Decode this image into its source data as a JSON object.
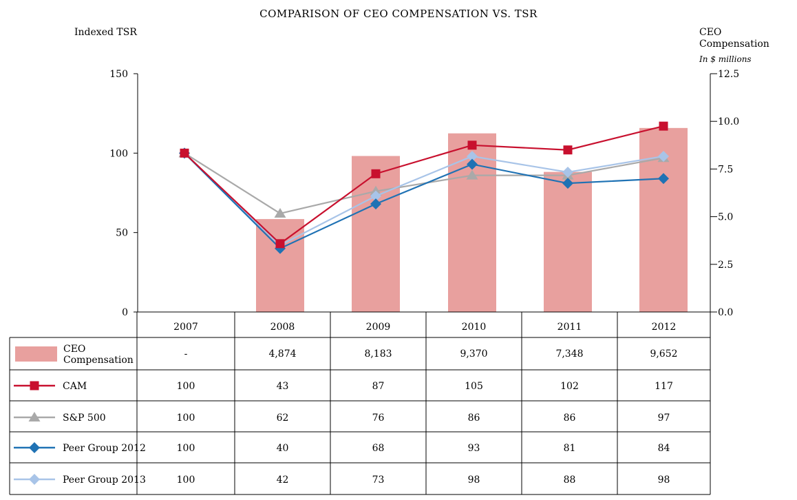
{
  "chart_data": {
    "type": "bar+line",
    "title": "COMPARISON OF CEO COMPENSATION VS. TSR",
    "left_axis": {
      "label": "Indexed TSR",
      "ylim": [
        0,
        150
      ],
      "ticks": [
        "0",
        "50",
        "100",
        "150"
      ]
    },
    "right_axis": {
      "label_line1": "CEO",
      "label_line2": "Compensation",
      "units": "In $ millions",
      "ylim": [
        0,
        12.5
      ],
      "ticks": [
        "0.0",
        "2.5",
        "5.0",
        "7.5",
        "10.0",
        "12.5"
      ]
    },
    "categories": [
      "2007",
      "2008",
      "2009",
      "2010",
      "2011",
      "2012"
    ],
    "bars": {
      "name_line1": "CEO",
      "name_line2": "Compensation",
      "color": "#e8a09e",
      "values": [
        null,
        4.874,
        8.183,
        9.37,
        7.348,
        9.652
      ],
      "display": [
        "-",
        "4,874",
        "8,183",
        "9,370",
        "7,348",
        "9,652"
      ]
    },
    "series": [
      {
        "name": "S&P 500",
        "color": "#a9a9a9",
        "marker": "triangle",
        "values": [
          100,
          62,
          76,
          86,
          86,
          97
        ]
      },
      {
        "name": "Peer Group 2013",
        "color": "#a8c4e8",
        "marker": "diamond",
        "values": [
          100,
          42,
          73,
          98,
          88,
          98
        ]
      },
      {
        "name": "Peer Group 2012",
        "color": "#1f72b4",
        "marker": "diamond",
        "values": [
          100,
          40,
          68,
          93,
          81,
          84
        ]
      },
      {
        "name": "CAM",
        "color": "#c8102e",
        "marker": "square",
        "values": [
          100,
          43,
          87,
          105,
          102,
          117
        ]
      }
    ],
    "table_rows": [
      {
        "label": "CAM",
        "values": [
          "100",
          "43",
          "87",
          "105",
          "102",
          "117"
        ]
      },
      {
        "label": "S&P 500",
        "values": [
          "100",
          "62",
          "76",
          "86",
          "86",
          "97"
        ]
      },
      {
        "label": "Peer Group 2012",
        "values": [
          "100",
          "40",
          "68",
          "93",
          "81",
          "84"
        ]
      },
      {
        "label": "Peer Group 2013",
        "values": [
          "100",
          "42",
          "73",
          "98",
          "88",
          "98"
        ]
      }
    ]
  }
}
